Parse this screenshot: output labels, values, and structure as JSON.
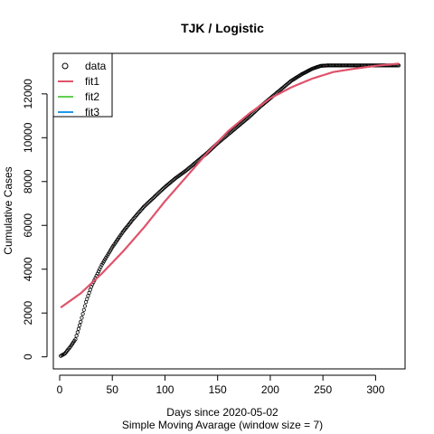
{
  "chart_data": {
    "type": "scatter",
    "title": "TJK / Logistic",
    "xlabel": "Days since 2020-05-02",
    "xlabel2": "Simple Moving Avarage (window size = 7)",
    "ylabel": "Cumulative Cases",
    "xlim": [
      -6,
      328
    ],
    "ylim": [
      -550,
      13850
    ],
    "xticks": [
      0,
      50,
      100,
      150,
      200,
      250,
      300
    ],
    "yticks": [
      0,
      2000,
      4000,
      6000,
      8000,
      10000,
      12000
    ],
    "legend_position": "top-left",
    "legend": [
      {
        "label": "data",
        "symbol": "circle",
        "color": "#000000"
      },
      {
        "label": "fit1",
        "symbol": "line",
        "color": "#DF536B"
      },
      {
        "label": "fit2",
        "symbol": "line",
        "color": "#61D04F"
      },
      {
        "label": "fit3",
        "symbol": "line",
        "color": "#2297E6"
      }
    ],
    "data_points_x": [
      1,
      5,
      10,
      15,
      20,
      25,
      30,
      40,
      50,
      60,
      70,
      80,
      90,
      100,
      110,
      120,
      130,
      140,
      150,
      160,
      170,
      180,
      190,
      200,
      210,
      220,
      230,
      240,
      248,
      255,
      260,
      270,
      280,
      290,
      300,
      310,
      322
    ],
    "data_points_y": [
      40,
      150,
      450,
      800,
      1600,
      2500,
      3200,
      4200,
      5000,
      5700,
      6300,
      6850,
      7300,
      7750,
      8150,
      8500,
      8900,
      9300,
      9750,
      10150,
      10550,
      10950,
      11400,
      11800,
      12200,
      12600,
      12900,
      13150,
      13280,
      13300,
      13300,
      13300,
      13300,
      13300,
      13300,
      13300,
      13300
    ],
    "series": [
      {
        "name": "fit1",
        "color": "#DF536B",
        "x": [
          1,
          20,
          40,
          60,
          80,
          100,
          120,
          140,
          160,
          180,
          200,
          220,
          240,
          260,
          280,
          300,
          322
        ],
        "y": [
          2250,
          2900,
          3800,
          4800,
          5900,
          7100,
          8200,
          9300,
          10300,
          11100,
          11800,
          12300,
          12700,
          13000,
          13150,
          13280,
          13380
        ]
      }
    ]
  }
}
